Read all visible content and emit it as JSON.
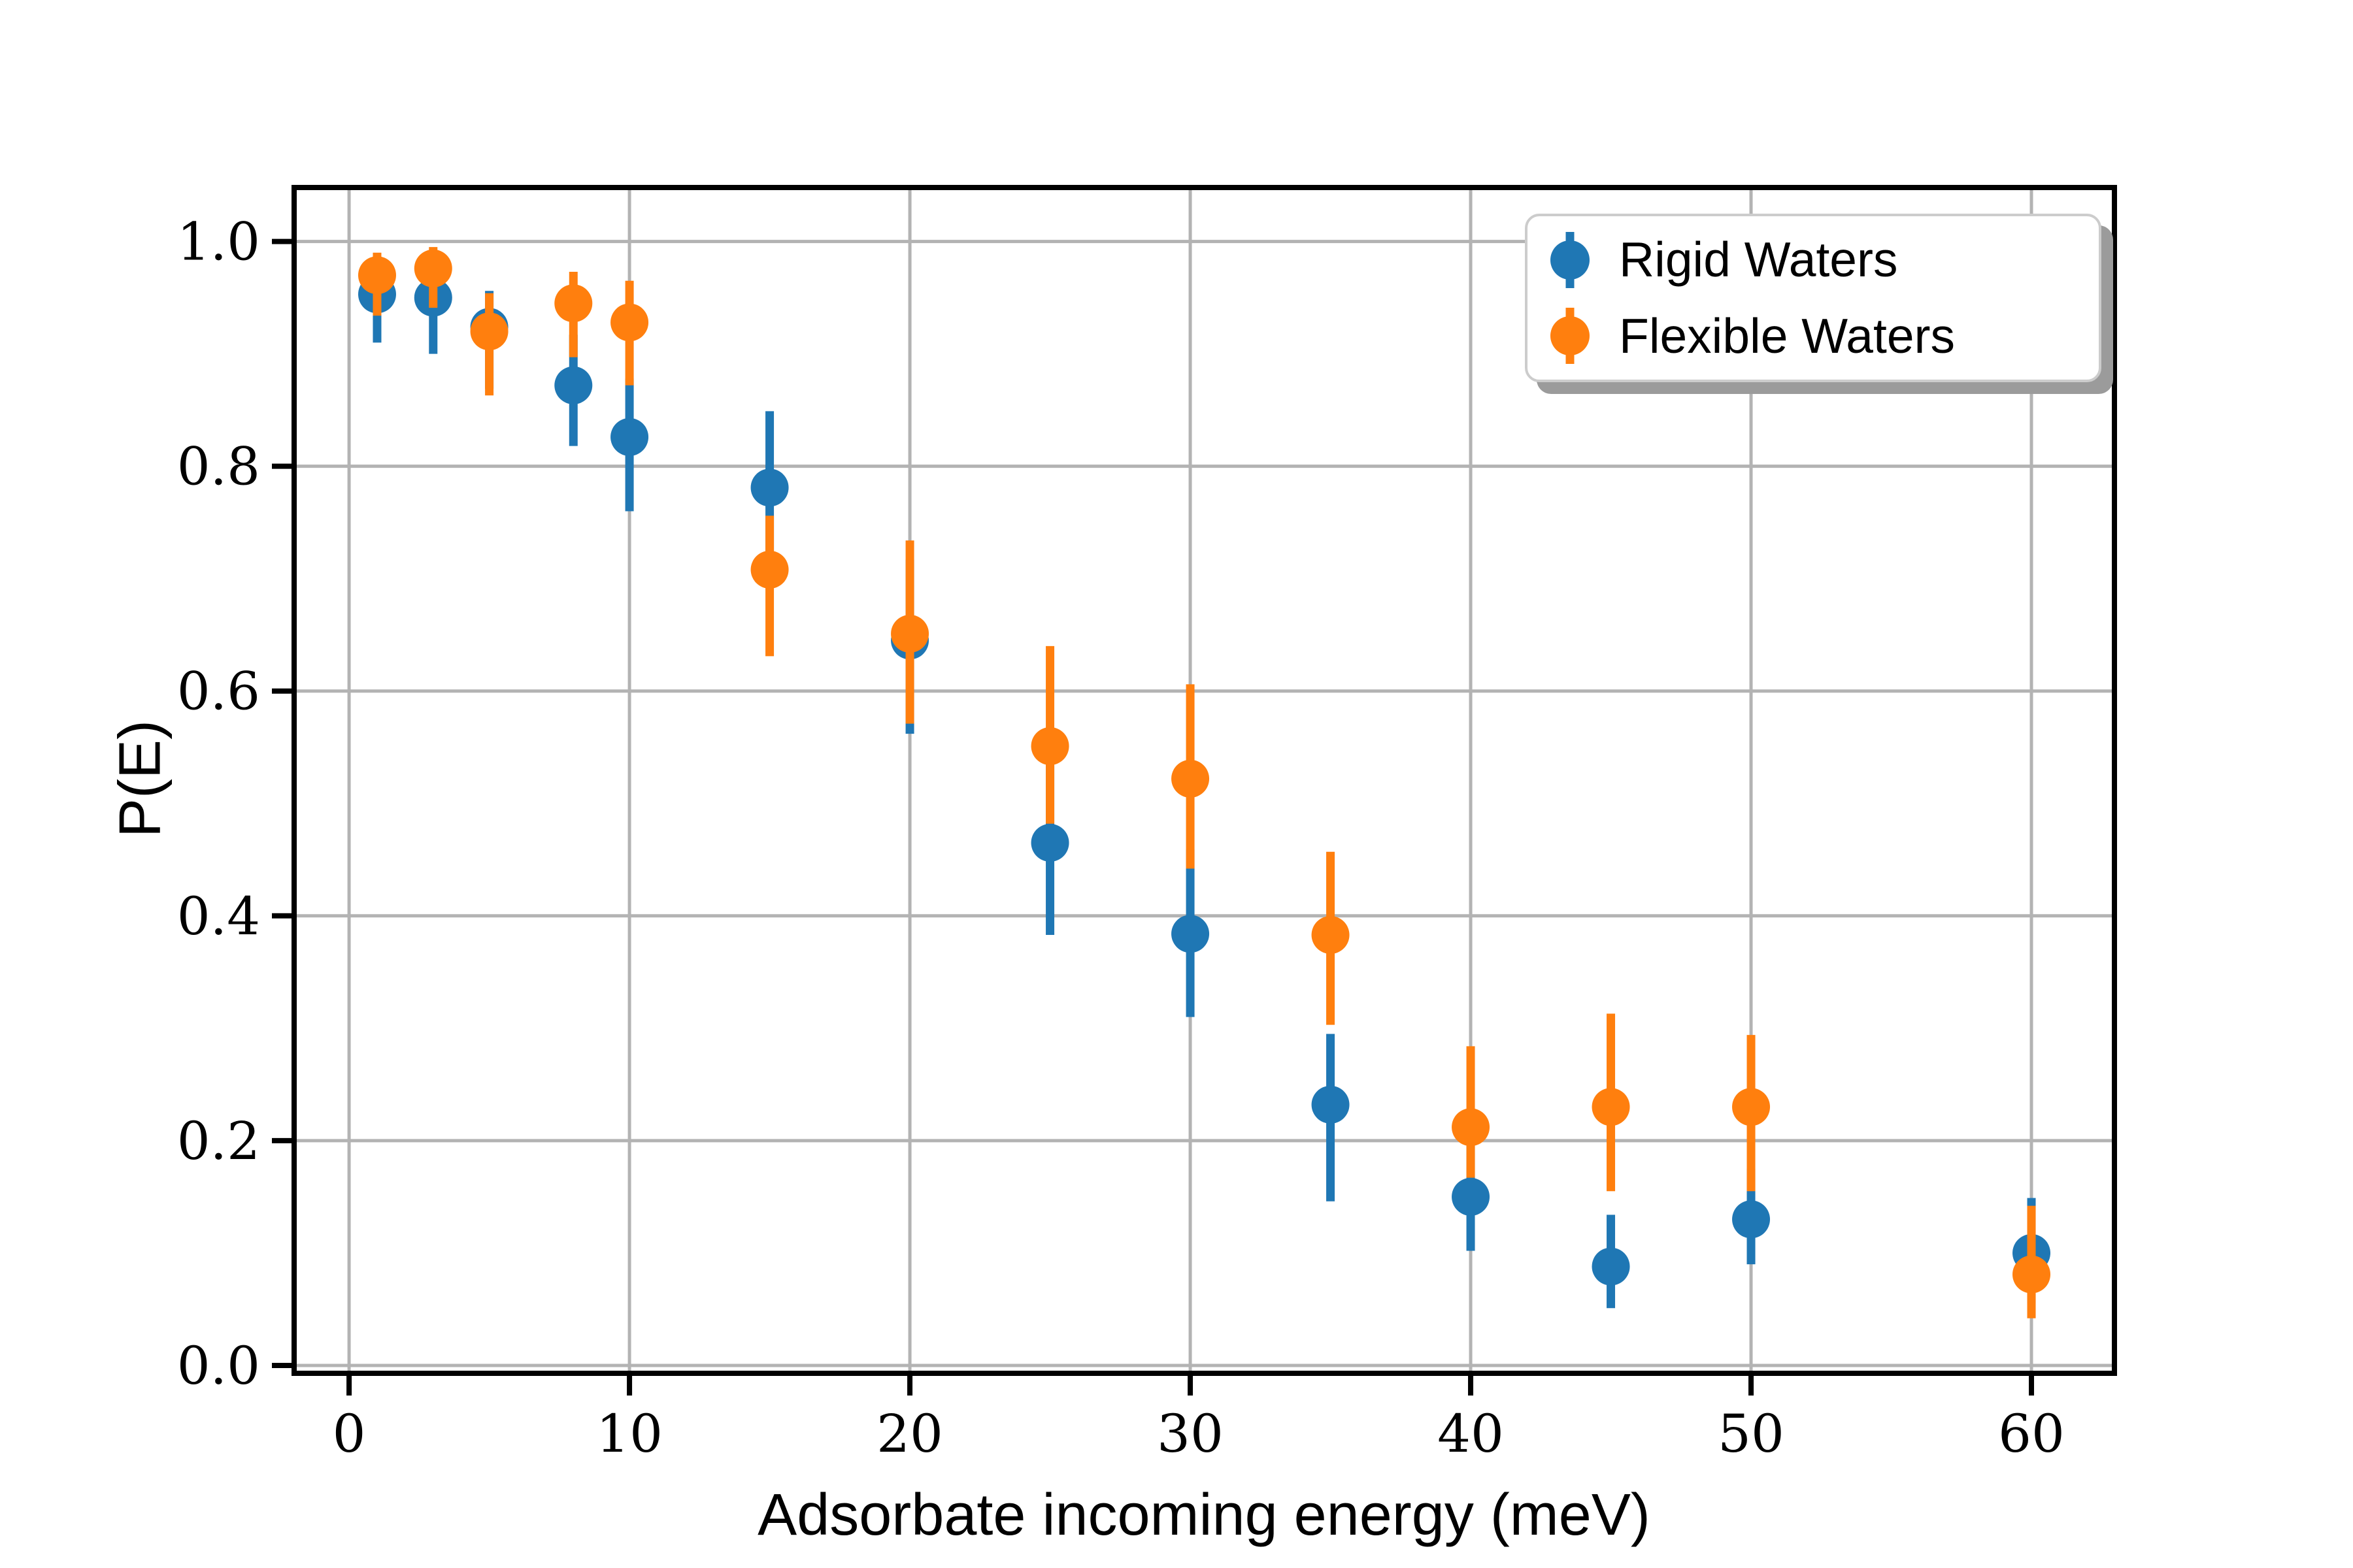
{
  "colors": {
    "background": "#ffffff",
    "grid": "#b3b3b3",
    "spine": "#000000",
    "rigid_blue": "#1f77b4",
    "flexible_orange": "#ff7f0e",
    "legend_border": "#cccccc",
    "legend_shadow": "#9b9b9b"
  },
  "legend": {
    "rigid_label": "Rigid Waters",
    "flexible_label": "Flexible Waters"
  },
  "chart_data": {
    "type": "scatter",
    "title": "",
    "xlabel": "Adsorbate incoming energy (meV)",
    "ylabel": "P(E)",
    "grid": true,
    "legend_position": "upper right",
    "xlim": [
      -1.96,
      62.96
    ],
    "ylim": [
      -0.007,
      1.048
    ],
    "x_tick_labels": [
      "0",
      "10",
      "20",
      "30",
      "40",
      "50",
      "60"
    ],
    "x_tick_values": [
      0,
      10,
      20,
      30,
      40,
      50,
      60
    ],
    "y_tick_labels": [
      "0.0",
      "0.2",
      "0.4",
      "0.6",
      "0.8",
      "1.0"
    ],
    "y_tick_values": [
      0.0,
      0.2,
      0.4,
      0.6,
      0.8,
      1.0
    ],
    "x": [
      1,
      3,
      5,
      8,
      10,
      15,
      20,
      25,
      30,
      35,
      40,
      45,
      50,
      60
    ],
    "series": [
      {
        "name": "Rigid Waters",
        "color": "#1f77b4",
        "values": [
          0.953,
          0.95,
          0.924,
          0.872,
          0.826,
          0.781,
          0.645,
          0.465,
          0.384,
          0.232,
          0.15,
          0.088,
          0.13,
          0.1
        ],
        "err_plus": [
          0.025,
          0.027,
          0.032,
          0.045,
          0.052,
          0.068,
          0.072,
          0.075,
          0.075,
          0.063,
          0.055,
          0.046,
          0.045,
          0.049
        ],
        "err_minus": [
          0.043,
          0.05,
          0.055,
          0.054,
          0.066,
          0.075,
          0.083,
          0.082,
          0.074,
          0.086,
          0.048,
          0.037,
          0.04,
          0.045
        ]
      },
      {
        "name": "Flexible Waters",
        "color": "#ff7f0e",
        "values": [
          0.97,
          0.976,
          0.92,
          0.945,
          0.928,
          0.708,
          0.651,
          0.551,
          0.522,
          0.383,
          0.212,
          0.23,
          0.23,
          0.081
        ],
        "err_plus": [
          0.02,
          0.019,
          0.034,
          0.028,
          0.037,
          0.048,
          0.083,
          0.089,
          0.084,
          0.074,
          0.072,
          0.083,
          0.064,
          0.061
        ],
        "err_minus": [
          0.036,
          0.035,
          0.057,
          0.048,
          0.056,
          0.077,
          0.08,
          0.069,
          0.08,
          0.08,
          0.045,
          0.075,
          0.075,
          0.039
        ]
      }
    ]
  }
}
